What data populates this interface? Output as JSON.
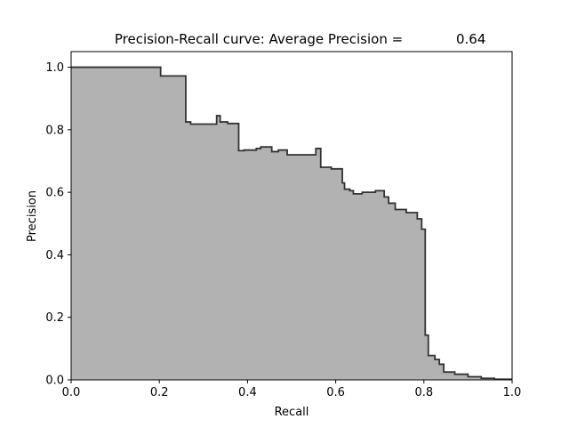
{
  "chart_data": {
    "type": "area",
    "title": "Precision-Recall curve: Average Precision =",
    "title_value": "0.64",
    "xlabel": "Recall",
    "ylabel": "Precision",
    "xlim": [
      0.0,
      1.0
    ],
    "ylim": [
      0.0,
      1.05
    ],
    "xticks": [
      "0.0",
      "0.2",
      "0.4",
      "0.6",
      "0.8",
      "1.0"
    ],
    "yticks": [
      "0.0",
      "0.2",
      "0.4",
      "0.6",
      "0.8",
      "1.0"
    ],
    "grid": false,
    "fill_color": "#b2b2b2",
    "line_color": "#333333",
    "series": [
      {
        "step": "post",
        "recall": [
          0.0,
          0.203,
          0.203,
          0.26,
          0.26,
          0.271,
          0.271,
          0.33,
          0.33,
          0.338,
          0.338,
          0.355,
          0.355,
          0.38,
          0.38,
          0.392,
          0.392,
          0.42,
          0.42,
          0.43,
          0.43,
          0.455,
          0.455,
          0.47,
          0.47,
          0.49,
          0.49,
          0.555,
          0.555,
          0.566,
          0.566,
          0.59,
          0.59,
          0.615,
          0.615,
          0.62,
          0.62,
          0.632,
          0.632,
          0.64,
          0.64,
          0.66,
          0.66,
          0.69,
          0.69,
          0.71,
          0.71,
          0.72,
          0.72,
          0.735,
          0.735,
          0.76,
          0.76,
          0.785,
          0.785,
          0.795,
          0.795,
          0.803,
          0.803,
          0.81,
          0.81,
          0.825,
          0.825,
          0.835,
          0.835,
          0.845,
          0.845,
          0.87,
          0.87,
          0.9,
          0.9,
          0.93,
          0.93,
          0.96,
          0.96,
          1.0
        ],
        "precision": [
          1.0,
          1.0,
          0.972,
          0.972,
          0.825,
          0.825,
          0.818,
          0.818,
          0.845,
          0.845,
          0.825,
          0.825,
          0.82,
          0.82,
          0.733,
          0.733,
          0.735,
          0.735,
          0.74,
          0.74,
          0.745,
          0.745,
          0.73,
          0.73,
          0.735,
          0.735,
          0.72,
          0.72,
          0.74,
          0.74,
          0.68,
          0.68,
          0.675,
          0.675,
          0.63,
          0.63,
          0.61,
          0.61,
          0.605,
          0.605,
          0.595,
          0.595,
          0.6,
          0.6,
          0.605,
          0.605,
          0.585,
          0.585,
          0.565,
          0.565,
          0.545,
          0.545,
          0.535,
          0.535,
          0.515,
          0.515,
          0.482,
          0.482,
          0.143,
          0.143,
          0.078,
          0.078,
          0.065,
          0.065,
          0.05,
          0.05,
          0.025,
          0.025,
          0.018,
          0.018,
          0.01,
          0.01,
          0.005,
          0.005,
          0.002,
          0.002
        ]
      }
    ]
  }
}
